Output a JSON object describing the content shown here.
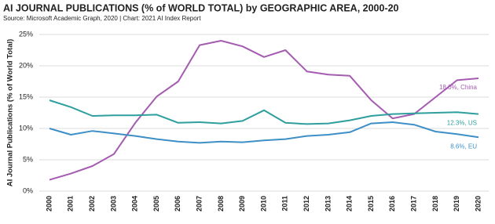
{
  "chart_data": {
    "type": "line",
    "title": "AI JOURNAL PUBLICATIONS (% of WORLD TOTAL) by GEOGRAPHIC AREA, 2000-20",
    "subtitle": "Source: Microsoft Academic Graph, 2020 | Chart: 2021 AI Index Report",
    "y_label": "AI Journal Publications (% of World Total)",
    "categories": [
      "2000",
      "2001",
      "2002",
      "2003",
      "2004",
      "2005",
      "2006",
      "2007",
      "2008",
      "2009",
      "2010",
      "2011",
      "2012",
      "2013",
      "2014",
      "2015",
      "2016",
      "2017",
      "2018",
      "2019",
      "2020"
    ],
    "series": [
      {
        "label": "18.0%, China",
        "color": "#a45bb0",
        "values": [
          1.8,
          2.8,
          4.0,
          5.9,
          10.9,
          15.1,
          17.5,
          23.3,
          24.0,
          23.1,
          21.4,
          22.5,
          19.1,
          18.6,
          18.4,
          14.5,
          11.6,
          12.3,
          15.0,
          17.7,
          18.0
        ]
      },
      {
        "label": "12.3%, US",
        "color": "#2e9e9e",
        "values": [
          14.5,
          13.4,
          12.0,
          12.1,
          12.1,
          12.2,
          10.9,
          11.0,
          10.8,
          11.2,
          12.9,
          10.9,
          10.7,
          10.8,
          11.3,
          12.0,
          12.3,
          12.4,
          12.5,
          12.6,
          12.3
        ]
      },
      {
        "label": "8.6%, EU",
        "color": "#3d8fc6",
        "values": [
          10.0,
          9.0,
          9.6,
          9.2,
          8.8,
          8.3,
          7.9,
          7.7,
          7.9,
          7.8,
          8.1,
          8.3,
          8.8,
          9.0,
          9.4,
          10.8,
          11.0,
          10.6,
          9.5,
          9.1,
          8.6
        ]
      }
    ],
    "ylim": [
      0,
      25
    ],
    "yticks": [
      {
        "value": 0,
        "label": "0%"
      },
      {
        "value": 5,
        "label": "5%"
      },
      {
        "value": 10,
        "label": "10%"
      },
      {
        "value": 15,
        "label": "15%"
      },
      {
        "value": 20,
        "label": "20%"
      },
      {
        "value": 25,
        "label": "25%"
      }
    ],
    "grid": true
  }
}
